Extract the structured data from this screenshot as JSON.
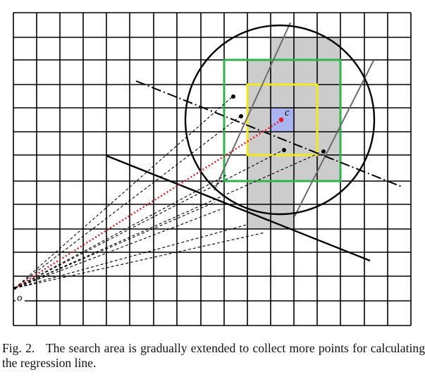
{
  "figure": {
    "labels": {
      "origin": "o",
      "center": "c"
    },
    "colors": {
      "grid": "#000000",
      "shaded": "#cccccc",
      "center_cell": "#a9b4f0",
      "green_box": "#2fb34a",
      "yellow_box": "#f0ea1c",
      "sampling_lines": "#6b6b6b",
      "red_ray": "#e8131b"
    },
    "icons": [
      "origin-point",
      "center-point",
      "collected-point",
      "search-circle",
      "regression-line",
      "dash-dot-line"
    ]
  },
  "caption": {
    "label": "Fig. 2.",
    "text": "The search area is gradually extended to collect more points for calculating the regression line."
  }
}
